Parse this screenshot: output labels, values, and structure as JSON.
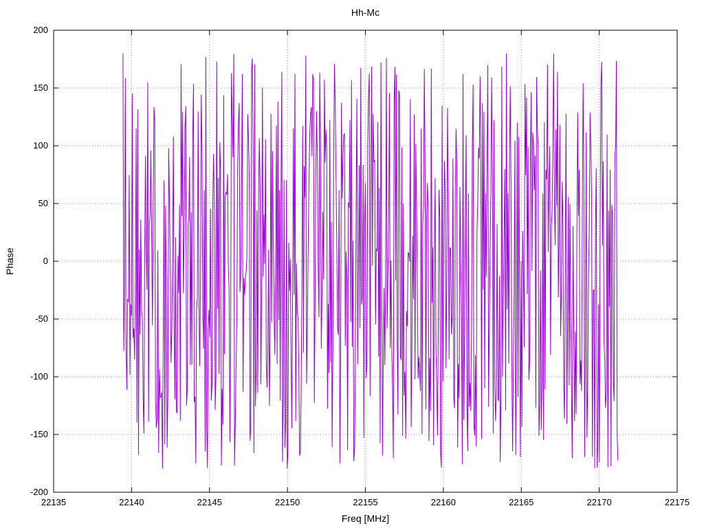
{
  "chart_data": {
    "type": "line",
    "title": "Hh-Mc",
    "xlabel": "Freq [MHz]",
    "ylabel": "Phase",
    "xlim": [
      22135,
      22175
    ],
    "ylim": [
      -200,
      200
    ],
    "x_ticks": [
      22135,
      22140,
      22145,
      22150,
      22155,
      22160,
      22165,
      22170,
      22175
    ],
    "y_ticks": [
      -200,
      -150,
      -100,
      -50,
      0,
      50,
      100,
      150,
      200
    ],
    "grid": "dotted",
    "grid_color": "#9a9ab0",
    "border_color": "#000000",
    "legend": "none",
    "series": [
      {
        "name": "Hh-Mc",
        "color": "#9400D3",
        "x_start": 22139.45,
        "x_end": 22171.2,
        "n_points": 640,
        "seed": 42,
        "behavior": "wrapped-phase",
        "y_wrap": [
          -180,
          180
        ],
        "phase_step_mean": 70,
        "phase_step_spread": 320,
        "first_phase": 180
      }
    ]
  }
}
